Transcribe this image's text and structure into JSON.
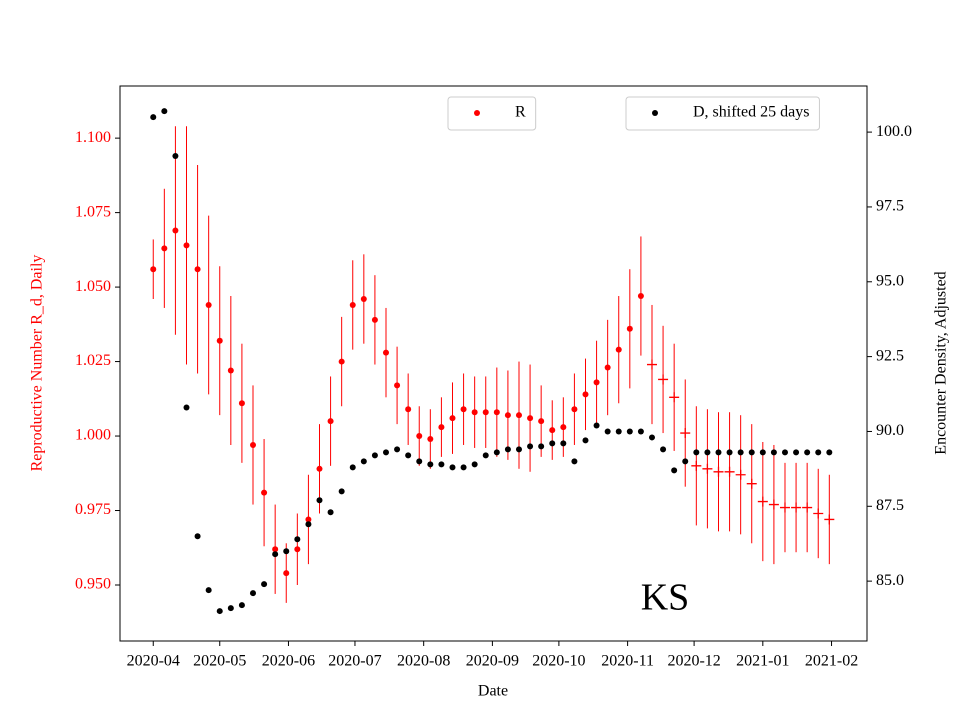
{
  "chart_data": {
    "type": "scatter",
    "x_label": "Date",
    "y_label": "Reproductive Number R_d, Daily",
    "y2_label": "Encounter Density, Adjusted",
    "annotation": "KS",
    "x": [
      0,
      5,
      10,
      15,
      20,
      25,
      30,
      35,
      40,
      45,
      50,
      55,
      60,
      65,
      70,
      75,
      80,
      85,
      90,
      95,
      100,
      105,
      110,
      115,
      120,
      125,
      130,
      135,
      140,
      145,
      150,
      155,
      160,
      165,
      170,
      175,
      180,
      185,
      190,
      195,
      200,
      205,
      210,
      215,
      220,
      225,
      230,
      235,
      240,
      245,
      250,
      255,
      260,
      265,
      270,
      275,
      280,
      285,
      290,
      295,
      300,
      305
    ],
    "series": [
      {
        "name": "R",
        "color": "#ff0000",
        "marker": "o",
        "plus_from": 225,
        "legend_loc": "upper center",
        "values": [
          1.056,
          1.063,
          1.069,
          1.064,
          1.056,
          1.044,
          1.032,
          1.022,
          1.011,
          0.997,
          0.981,
          0.962,
          0.954,
          0.962,
          0.972,
          0.989,
          1.005,
          1.025,
          1.044,
          1.046,
          1.039,
          1.028,
          1.017,
          1.009,
          1.0,
          0.999,
          1.003,
          1.006,
          1.009,
          1.008,
          1.008,
          1.008,
          1.007,
          1.007,
          1.006,
          1.005,
          1.002,
          1.003,
          1.009,
          1.014,
          1.018,
          1.023,
          1.029,
          1.036,
          1.047,
          1.024,
          1.019,
          1.013,
          1.001,
          0.99,
          0.989,
          0.988,
          0.988,
          0.987,
          0.984,
          0.978,
          0.977,
          0.976,
          0.976,
          0.976,
          0.974,
          0.972
        ],
        "errors": [
          0.01,
          0.02,
          0.035,
          0.04,
          0.035,
          0.03,
          0.025,
          0.025,
          0.02,
          0.02,
          0.018,
          0.015,
          0.01,
          0.012,
          0.015,
          0.015,
          0.015,
          0.015,
          0.015,
          0.015,
          0.015,
          0.015,
          0.013,
          0.012,
          0.01,
          0.01,
          0.01,
          0.012,
          0.012,
          0.012,
          0.012,
          0.015,
          0.015,
          0.018,
          0.018,
          0.012,
          0.01,
          0.01,
          0.012,
          0.012,
          0.014,
          0.016,
          0.018,
          0.02,
          0.02,
          0.02,
          0.018,
          0.018,
          0.018,
          0.02,
          0.02,
          0.02,
          0.02,
          0.02,
          0.02,
          0.02,
          0.02,
          0.015,
          0.015,
          0.015,
          0.015,
          0.015
        ]
      },
      {
        "name": "D, shifted 25 days",
        "color": "#000000",
        "marker": "o",
        "axis": "y2",
        "legend_loc": "upper right",
        "values": [
          100.5,
          100.7,
          99.2,
          90.8,
          86.5,
          84.7,
          84.0,
          84.1,
          84.2,
          84.6,
          84.9,
          85.9,
          86.0,
          86.4,
          86.9,
          87.7,
          87.3,
          88.0,
          88.8,
          89.0,
          89.2,
          89.3,
          89.4,
          89.2,
          89.0,
          88.9,
          88.9,
          88.8,
          88.8,
          88.9,
          89.2,
          89.3,
          89.4,
          89.4,
          89.5,
          89.5,
          89.6,
          89.6,
          89.0,
          89.7,
          90.2,
          90.0,
          90.0,
          90.0,
          90.0,
          89.8,
          89.4,
          88.7,
          89.0,
          89.3,
          89.3,
          89.3,
          89.3,
          89.3,
          89.3,
          89.3,
          89.3,
          89.3,
          89.3,
          89.3,
          89.3,
          89.3
        ]
      }
    ],
    "xlim": [
      -15,
      322
    ],
    "xticks": [
      {
        "value": 0,
        "label": "2020-04"
      },
      {
        "value": 30,
        "label": "2020-05"
      },
      {
        "value": 61,
        "label": "2020-06"
      },
      {
        "value": 91,
        "label": "2020-07"
      },
      {
        "value": 122,
        "label": "2020-08"
      },
      {
        "value": 153,
        "label": "2020-09"
      },
      {
        "value": 183,
        "label": "2020-10"
      },
      {
        "value": 214,
        "label": "2020-11"
      },
      {
        "value": 244,
        "label": "2020-12"
      },
      {
        "value": 275,
        "label": "2021-01"
      },
      {
        "value": 306,
        "label": "2021-02"
      }
    ],
    "ylim": [
      0.9312,
      1.1175
    ],
    "yticks": [
      {
        "value": 0.95,
        "label": "0.950"
      },
      {
        "value": 0.975,
        "label": "0.975"
      },
      {
        "value": 1.0,
        "label": "1.000"
      },
      {
        "value": 1.025,
        "label": "1.025"
      },
      {
        "value": 1.05,
        "label": "1.050"
      },
      {
        "value": 1.075,
        "label": "1.075"
      },
      {
        "value": 1.1,
        "label": "1.100"
      }
    ],
    "y_color": "#ff0000",
    "y2lim": [
      83.0,
      101.54
    ],
    "y2ticks": [
      {
        "value": 85,
        "label": "85.0"
      },
      {
        "value": 87.5,
        "label": "87.5"
      },
      {
        "value": 90,
        "label": "90.0"
      },
      {
        "value": 92.5,
        "label": "92.5"
      },
      {
        "value": 95,
        "label": "95.0"
      },
      {
        "value": 97.5,
        "label": "97.5"
      },
      {
        "value": 100,
        "label": "100.0"
      }
    ]
  }
}
